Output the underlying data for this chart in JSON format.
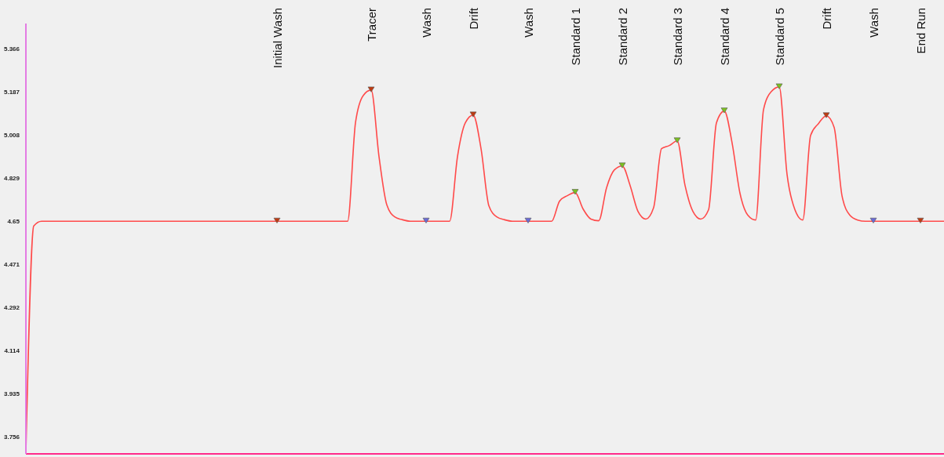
{
  "chart_data": {
    "type": "line",
    "categories": [
      null,
      null,
      null,
      null,
      null,
      null,
      null,
      null,
      null,
      null,
      null,
      null,
      null,
      null,
      null,
      null,
      null,
      null,
      null,
      null,
      null,
      null,
      null,
      null,
      null,
      null,
      null,
      null,
      null,
      null,
      null,
      null,
      "Initial Wash",
      null,
      null,
      null,
      null,
      null,
      null,
      null,
      null,
      null,
      null,
      null,
      "Tracer",
      null,
      null,
      null,
      null,
      null,
      null,
      "Wash",
      null,
      null,
      null,
      null,
      null,
      "Drift",
      null,
      null,
      null,
      null,
      null,
      null,
      "Wash",
      null,
      null,
      null,
      null,
      null,
      "Standard 1",
      null,
      null,
      null,
      null,
      null,
      "Standard 2",
      null,
      null,
      null,
      null,
      null,
      null,
      "Standard 3",
      null,
      null,
      null,
      null,
      null,
      "Standard 4",
      null,
      null,
      null,
      null,
      null,
      null,
      "Standard 5",
      null,
      null,
      null,
      null,
      null,
      "Drift",
      null,
      null,
      null,
      null,
      null,
      "Wash",
      null,
      null,
      null,
      null,
      null,
      "End Run",
      null,
      null,
      null
    ],
    "series": [
      {
        "type": "line",
        "color": "#ff4a4a",
        "values": [
          3.69,
          4.63,
          4.65,
          4.65,
          4.65,
          4.65,
          4.65,
          4.65,
          4.65,
          4.65,
          4.65,
          4.65,
          4.65,
          4.65,
          4.65,
          4.65,
          4.65,
          4.65,
          4.65,
          4.65,
          4.65,
          4.65,
          4.65,
          4.65,
          4.65,
          4.65,
          4.65,
          4.65,
          4.65,
          4.65,
          4.65,
          4.65,
          4.65,
          4.65,
          4.65,
          4.65,
          4.65,
          4.65,
          4.65,
          4.65,
          4.65,
          4.65,
          5.058,
          5.172,
          5.194,
          4.918,
          4.717,
          4.668,
          4.656,
          4.65,
          4.65,
          4.65,
          4.65,
          4.65,
          4.65,
          4.918,
          5.058,
          5.09,
          4.951,
          4.714,
          4.668,
          4.656,
          4.65,
          4.65,
          4.65,
          4.65,
          4.65,
          4.65,
          4.733,
          4.756,
          4.769,
          4.701,
          4.659,
          4.652,
          4.789,
          4.863,
          4.879,
          4.798,
          4.691,
          4.659,
          4.707,
          4.951,
          4.964,
          4.983,
          4.798,
          4.691,
          4.659,
          4.698,
          5.058,
          5.107,
          4.974,
          4.766,
          4.675,
          4.655,
          5.113,
          5.188,
          5.207,
          4.844,
          4.698,
          4.655,
          5.006,
          5.055,
          5.087,
          5.039,
          4.756,
          4.675,
          4.655,
          4.65,
          4.65,
          4.65,
          4.65,
          4.65,
          4.65,
          4.65,
          4.65,
          4.65,
          4.65,
          4.65
        ]
      },
      {
        "type": "scatter",
        "marker": "triangle",
        "color": "#c03a10",
        "values": [
          null,
          null,
          null,
          null,
          null,
          null,
          null,
          null,
          null,
          null,
          null,
          null,
          null,
          null,
          null,
          null,
          null,
          null,
          null,
          null,
          null,
          null,
          null,
          null,
          null,
          null,
          null,
          null,
          null,
          null,
          null,
          null,
          4.65,
          null,
          null,
          null,
          null,
          null,
          null,
          null,
          null,
          null,
          null,
          null,
          5.194,
          null,
          null,
          null,
          null,
          null,
          null,
          null,
          null,
          null,
          null,
          null,
          null,
          5.09,
          null,
          null,
          null,
          null,
          null,
          null,
          null,
          null,
          null,
          null,
          null,
          null,
          null,
          null,
          null,
          null,
          null,
          null,
          null,
          null,
          null,
          null,
          null,
          null,
          null,
          null,
          null,
          null,
          null,
          null,
          null,
          null,
          null,
          null,
          null,
          null,
          null,
          null,
          null,
          null,
          null,
          null,
          null,
          null,
          5.087,
          null,
          null,
          null,
          null,
          null,
          null,
          null,
          null,
          null,
          null,
          null,
          4.65,
          null,
          null,
          null
        ]
      },
      {
        "type": "scatter",
        "marker": "triangle",
        "color": "#6a6ad8",
        "values": [
          null,
          null,
          null,
          null,
          null,
          null,
          null,
          null,
          null,
          null,
          null,
          null,
          null,
          null,
          null,
          null,
          null,
          null,
          null,
          null,
          null,
          null,
          null,
          null,
          null,
          null,
          null,
          null,
          null,
          null,
          null,
          null,
          null,
          null,
          null,
          null,
          null,
          null,
          null,
          null,
          null,
          null,
          null,
          null,
          null,
          null,
          null,
          null,
          null,
          null,
          null,
          4.65,
          null,
          null,
          null,
          null,
          null,
          null,
          null,
          null,
          null,
          null,
          null,
          null,
          4.65,
          null,
          null,
          null,
          null,
          null,
          null,
          null,
          null,
          null,
          null,
          null,
          null,
          null,
          null,
          null,
          null,
          null,
          null,
          null,
          null,
          null,
          null,
          null,
          null,
          null,
          null,
          null,
          null,
          null,
          null,
          null,
          null,
          null,
          null,
          null,
          null,
          null,
          null,
          null,
          null,
          null,
          null,
          null,
          4.65,
          null,
          null,
          null,
          null,
          null,
          null,
          null,
          null,
          null
        ]
      },
      {
        "type": "scatter",
        "marker": "triangle",
        "color": "#7cc020",
        "values": [
          null,
          null,
          null,
          null,
          null,
          null,
          null,
          null,
          null,
          null,
          null,
          null,
          null,
          null,
          null,
          null,
          null,
          null,
          null,
          null,
          null,
          null,
          null,
          null,
          null,
          null,
          null,
          null,
          null,
          null,
          null,
          null,
          null,
          null,
          null,
          null,
          null,
          null,
          null,
          null,
          null,
          null,
          null,
          null,
          null,
          null,
          null,
          null,
          null,
          null,
          null,
          null,
          null,
          null,
          null,
          null,
          null,
          null,
          null,
          null,
          null,
          null,
          null,
          null,
          null,
          null,
          null,
          null,
          null,
          null,
          4.769,
          null,
          null,
          null,
          null,
          null,
          4.879,
          null,
          null,
          null,
          null,
          null,
          null,
          4.983,
          null,
          null,
          null,
          null,
          null,
          5.107,
          null,
          null,
          null,
          null,
          null,
          null,
          5.207,
          null,
          null,
          null,
          null,
          null,
          null,
          null,
          null,
          null,
          null,
          null,
          null,
          null,
          null,
          null,
          null,
          null,
          null,
          null,
          null,
          null
        ]
      }
    ],
    "ylim": [
      3.685,
      5.47
    ],
    "yticks": [
      3.756,
      3.935,
      4.114,
      4.292,
      4.471,
      4.65,
      4.829,
      5.008,
      5.187,
      5.366
    ],
    "grid": false,
    "legend": false
  }
}
